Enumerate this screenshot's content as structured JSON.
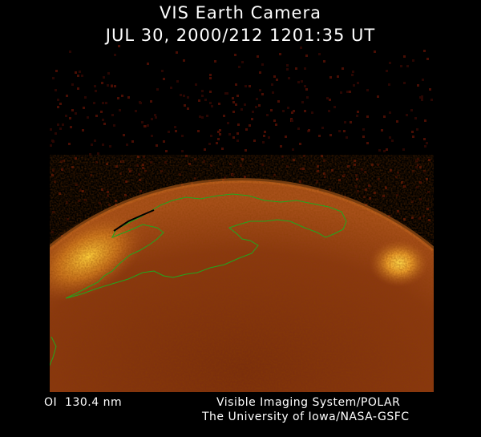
{
  "header": {
    "title": "VIS Earth Camera",
    "timestamp": "JUL 30, 2000/212 1201:35 UT"
  },
  "footer": {
    "wavelength": "OI  130.4 nm",
    "instrument": "Visible Imaging System/POLAR",
    "credit": "The University of Iowa/NASA-GSFC"
  },
  "colors": {
    "background": "#000000",
    "disk_dark": "#5a1c06",
    "disk_mid": "#8a3a10",
    "aurora_bright": "#ffd23c",
    "coastline": "#1fa81f"
  }
}
